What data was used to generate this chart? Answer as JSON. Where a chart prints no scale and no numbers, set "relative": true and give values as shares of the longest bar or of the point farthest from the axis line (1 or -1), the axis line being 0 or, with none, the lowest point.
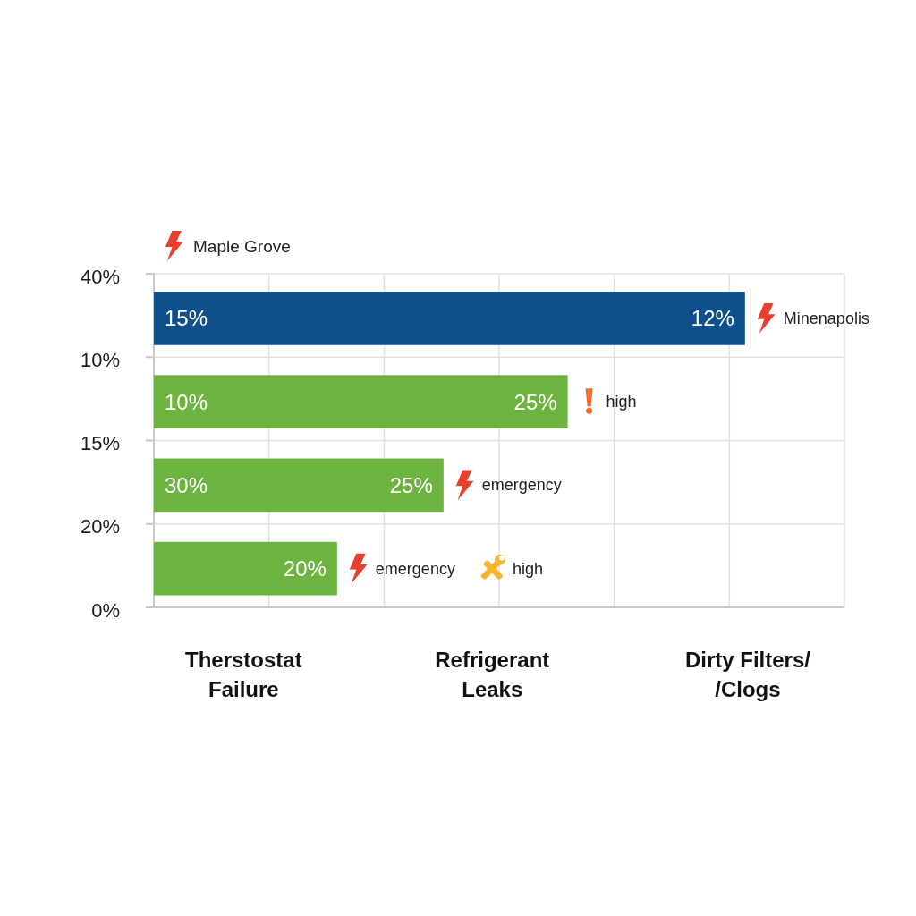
{
  "chart_data": {
    "type": "bar",
    "orientation": "horizontal",
    "relative": true,
    "categories": [
      null,
      null,
      null,
      null
    ],
    "values": [
      1,
      0.7,
      0.49,
      0.31
    ],
    "colors": [
      "#0f4f8b",
      "#6db33f",
      "#6db33f",
      "#6db33f"
    ],
    "grid": true,
    "annotations": [
      "Maple Grove",
      "40%",
      "15%",
      "12%",
      "Minenapolis",
      "10%",
      "10%",
      "25%",
      "high",
      "15%",
      "30%",
      "25%",
      "emergency",
      "20%",
      "20%",
      "emergency",
      "high",
      "0%",
      "Therstostat Failure",
      "Refrigerant Leaks",
      "Dirty Filters/ /Clogs"
    ]
  }
}
